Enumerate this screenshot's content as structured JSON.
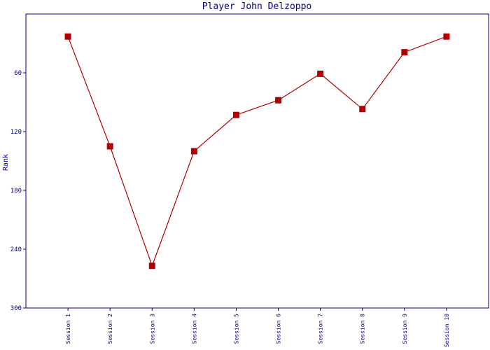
{
  "chart_data": {
    "type": "line",
    "title": "Player John Delzoppo",
    "y_label": "Rank",
    "categories": [
      "Session 1",
      "Session 2",
      "Session 3",
      "Session 4",
      "Session 5",
      "Session 6",
      "Session 7",
      "Session 8",
      "Session 9",
      "Session 10"
    ],
    "series": [
      {
        "name": "Rank",
        "color": "#b00000",
        "values": [
          23,
          135,
          257,
          140,
          103,
          88,
          61,
          97,
          39,
          23
        ]
      }
    ],
    "ylim": [
      0,
      300
    ],
    "yticks": [
      60,
      120,
      180,
      240,
      300
    ],
    "y_inverted": true,
    "grid": false
  }
}
